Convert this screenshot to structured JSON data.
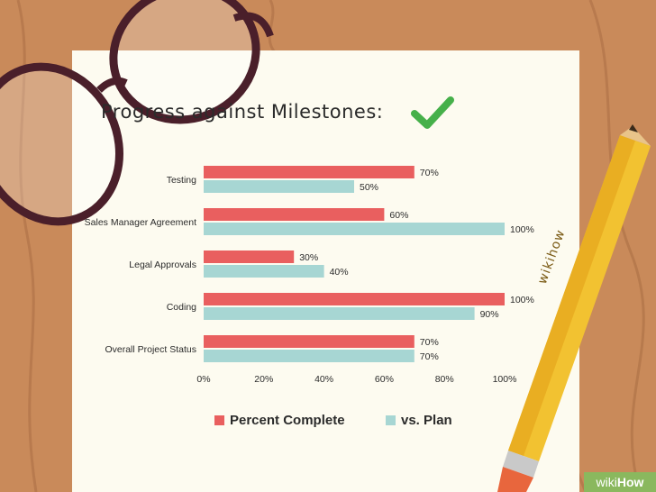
{
  "title": "Progress against Milestones:",
  "icons": {
    "check": "check-mark-icon",
    "glasses": "eyeglasses-icon",
    "pencil": "pencil-icon"
  },
  "pencil_label": "wikihow",
  "brand": {
    "prefix": "wiki",
    "suffix": "How"
  },
  "colors": {
    "background": "#c98a5a",
    "paper": "#fdfbf0",
    "percent_complete": "#e95f5f",
    "vs_plan": "#a7d6d3",
    "check": "#46b04a",
    "brand": "#8ab85e"
  },
  "chart_data": {
    "type": "bar",
    "orientation": "horizontal",
    "categories": [
      "Testing",
      "Sales Manager Agreement",
      "Legal Approvals",
      "Coding",
      "Overall Project Status"
    ],
    "series": [
      {
        "name": "Percent Complete",
        "values": [
          70,
          60,
          30,
          100,
          70
        ],
        "labels": [
          "70%",
          "60%",
          "30%",
          "100%",
          "70%"
        ]
      },
      {
        "name": "vs. Plan",
        "values": [
          50,
          100,
          40,
          90,
          70
        ],
        "labels": [
          "50%",
          "100%",
          "40%",
          "90%",
          "70%"
        ]
      }
    ],
    "xlim": [
      0,
      100
    ],
    "xticks": [
      0,
      20,
      40,
      60,
      80,
      100
    ],
    "xtick_labels": [
      "0%",
      "20%",
      "40%",
      "60%",
      "80%",
      "100%"
    ],
    "grid": false,
    "legend": "bottom",
    "xlabel": "",
    "ylabel": ""
  }
}
